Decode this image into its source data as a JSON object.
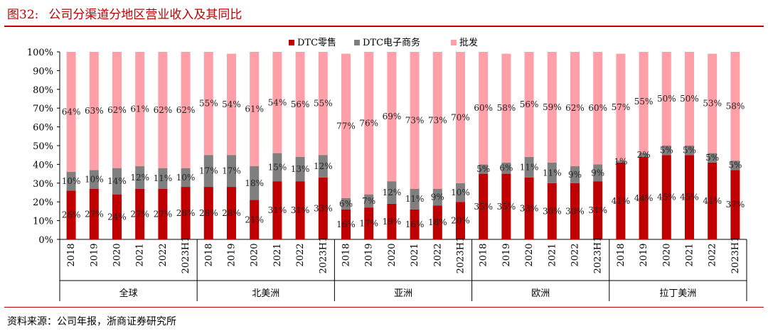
{
  "figure": {
    "number": "图32:",
    "title": "公司分渠道分地区营业收入及其同比",
    "source": "资料来源：公司年报，浙商证券研究所"
  },
  "colors": {
    "title": "#c00000",
    "dtc_retail": "#c00000",
    "dtc_ecommerce": "#7f7f7f",
    "wholesale": "#ff9fa8"
  },
  "chart_data": {
    "type": "bar",
    "stacked": true,
    "title": "公司分渠道分地区营业收入及其同比",
    "xlabel": "",
    "ylabel": "",
    "ylim": [
      0,
      100
    ],
    "yticks": [
      "0%",
      "10%",
      "20%",
      "30%",
      "40%",
      "50%",
      "60%",
      "70%",
      "80%",
      "90%",
      "100%"
    ],
    "legend_position": "top-center",
    "groups": [
      {
        "name": "全球",
        "categories": [
          "2018",
          "2019",
          "2020",
          "2021",
          "2022",
          "2023H1"
        ],
        "dtc_retail": [
          26,
          27,
          24,
          27,
          27,
          28
        ],
        "dtc_ecommerce": [
          10,
          10,
          14,
          12,
          11,
          10
        ],
        "wholesale": [
          64,
          63,
          62,
          61,
          62,
          62
        ],
        "labels": {
          "dtc_retail": [
            "26%",
            "27%",
            "24%",
            "27%",
            "27%",
            "28%"
          ],
          "dtc_ecommerce": [
            "10%",
            "10%",
            "14%",
            "12%",
            "11%",
            "10%"
          ],
          "wholesale": [
            "64%",
            "63%",
            "62%",
            "61%",
            "62%",
            "62%"
          ]
        }
      },
      {
        "name": "北美洲",
        "categories": [
          "2018",
          "2019",
          "2020",
          "2021",
          "2022",
          "2023H1"
        ],
        "dtc_retail": [
          28,
          28,
          21,
          31,
          31,
          33
        ],
        "dtc_ecommerce": [
          17,
          17,
          18,
          15,
          13,
          12
        ],
        "wholesale": [
          55,
          54,
          61,
          54,
          56,
          55
        ],
        "labels": {
          "dtc_retail": [
            "28%",
            "28%",
            "21%",
            "31%",
            "31%",
            "33%"
          ],
          "dtc_ecommerce": [
            "17%",
            "17%",
            "18%",
            "15%",
            "13%",
            "12%"
          ],
          "wholesale": [
            "55%",
            "54%",
            "61%",
            "54%",
            "56%",
            "55%"
          ]
        }
      },
      {
        "name": "亚洲",
        "categories": [
          "2018",
          "2019",
          "2020",
          "2021",
          "2022",
          "2023H1"
        ],
        "dtc_retail": [
          16,
          17,
          19,
          16,
          18,
          20
        ],
        "dtc_ecommerce": [
          6,
          7,
          12,
          11,
          9,
          10
        ],
        "wholesale": [
          77,
          76,
          69,
          73,
          73,
          70
        ],
        "labels": {
          "dtc_retail": [
            "16%",
            "17%",
            "19%",
            "16%",
            "18%",
            "20%"
          ],
          "dtc_ecommerce": [
            "6%",
            "7%",
            "12%",
            "11%",
            "9%",
            "10%"
          ],
          "wholesale": [
            "77%",
            "76%",
            "69%",
            "73%",
            "73%",
            "70%"
          ]
        }
      },
      {
        "name": "欧洲",
        "categories": [
          "2018",
          "2019",
          "2020",
          "2021",
          "2022",
          "2023H1"
        ],
        "dtc_retail": [
          35,
          35,
          33,
          30,
          30,
          31
        ],
        "dtc_ecommerce": [
          5,
          6,
          11,
          11,
          9,
          9
        ],
        "wholesale": [
          60,
          58,
          56,
          59,
          62,
          60
        ],
        "labels": {
          "dtc_retail": [
            "35%",
            "35%",
            "33%",
            "30%",
            "30%",
            "31%"
          ],
          "dtc_ecommerce": [
            "5%",
            "6%",
            "11%",
            "11%",
            "9%",
            "9%"
          ],
          "wholesale": [
            "60%",
            "58%",
            "56%",
            "59%",
            "62%",
            "60%"
          ]
        }
      },
      {
        "name": "拉丁美洲",
        "categories": [
          "2018",
          "2019",
          "2020",
          "2021",
          "2022",
          "2023H1"
        ],
        "dtc_retail": [
          41,
          44,
          45,
          45,
          41,
          37
        ],
        "dtc_ecommerce": [
          1,
          2,
          5,
          5,
          5,
          5
        ],
        "wholesale": [
          57,
          55,
          50,
          50,
          53,
          58
        ],
        "labels": {
          "dtc_retail": [
            "41%",
            "44%",
            "45%",
            "45%",
            "41%",
            "37%"
          ],
          "dtc_ecommerce": [
            "1%",
            "2%",
            "5%",
            "5%",
            "5%",
            "5%"
          ],
          "wholesale": [
            "57%",
            "55%",
            "50%",
            "50%",
            "53%",
            "58%"
          ]
        }
      }
    ],
    "legend": [
      {
        "key": "dtc_retail",
        "label": "DTC零售"
      },
      {
        "key": "dtc_ecommerce",
        "label": "DTC电子商务"
      },
      {
        "key": "wholesale",
        "label": "批发"
      }
    ]
  }
}
